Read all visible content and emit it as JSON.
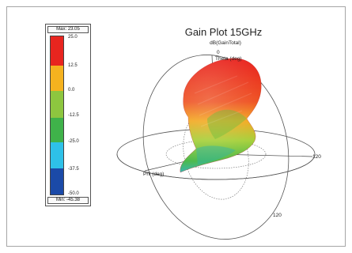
{
  "chart_data": {
    "type": "other",
    "title": "Gain Plot 15GHz",
    "subtitle": "dB(GainTotal)",
    "legend": {
      "max_label": "Max: 23.05",
      "min_label": "Min: -45.38",
      "ticks": [
        "25.0",
        "12.5",
        "0.0",
        "-12.5",
        "-25.0",
        "-37.5",
        "-50.0"
      ],
      "colors": [
        "#e8251f",
        "#f5a31f",
        "#8dc63f",
        "#3fb24a",
        "#2ec1e8",
        "#2b6cc4",
        "#1b3c9a"
      ]
    },
    "axes": {
      "theta_label": "Theta (deg)",
      "phi_label": "Phi (deg)",
      "origin_label": "0",
      "ring_label_right": "120",
      "ring_label_bottom": "120"
    }
  }
}
